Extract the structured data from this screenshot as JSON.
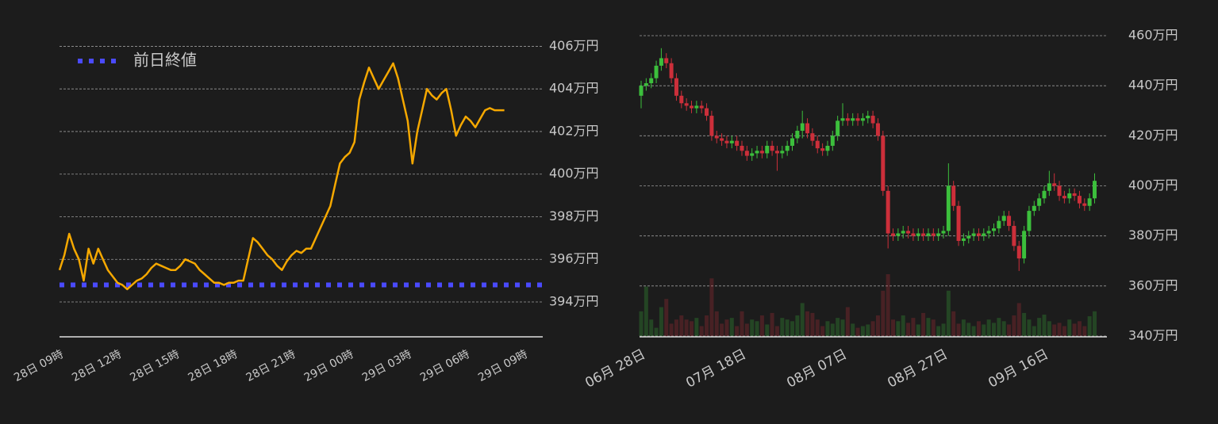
{
  "chart_data": [
    {
      "type": "line",
      "categories": [
        "28日 09時",
        null,
        null,
        null,
        null,
        null,
        null,
        null,
        null,
        null,
        null,
        null,
        "28日 12時",
        null,
        null,
        null,
        null,
        null,
        null,
        null,
        null,
        null,
        null,
        null,
        "28日 15時",
        null,
        null,
        null,
        null,
        null,
        null,
        null,
        null,
        null,
        null,
        null,
        "28日 18時",
        null,
        null,
        null,
        null,
        null,
        null,
        null,
        null,
        null,
        null,
        null,
        "28日 21時",
        null,
        null,
        null,
        null,
        null,
        null,
        null,
        null,
        null,
        null,
        null,
        "29日 00時",
        null,
        null,
        null,
        null,
        null,
        null,
        null,
        null,
        null,
        null,
        null,
        "29日 03時",
        null,
        null,
        null,
        null,
        null,
        null,
        null,
        null,
        null,
        null,
        null,
        "29日 06時",
        null,
        null,
        null,
        null,
        null,
        null,
        null,
        null,
        null,
        null,
        null,
        "29日 09時"
      ],
      "series": [
        {
          "color": "#f5a800",
          "values": [
            395.5,
            396.2,
            397.2,
            396.5,
            396.0,
            395.0,
            396.5,
            395.8,
            396.5,
            396.0,
            395.5,
            395.2,
            394.9,
            394.8,
            394.6,
            394.8,
            395.0,
            395.1,
            395.3,
            395.6,
            395.8,
            395.7,
            395.6,
            395.5,
            395.5,
            395.7,
            396.0,
            395.9,
            395.8,
            395.5,
            395.3,
            395.1,
            394.9,
            394.9,
            394.8,
            394.9,
            394.9,
            395.0,
            395.0,
            396.0,
            397.0,
            396.8,
            396.5,
            396.2,
            396.0,
            395.7,
            395.5,
            395.9,
            396.2,
            396.4,
            396.3,
            396.5,
            396.5,
            397.0,
            397.5,
            398.0,
            398.5,
            399.5,
            400.5,
            400.8,
            401.0,
            401.5,
            403.5,
            404.3,
            405.0,
            404.5,
            404.0,
            404.4,
            404.8,
            405.2,
            404.5,
            403.5,
            402.5,
            400.5,
            402.0,
            403.0,
            404.0,
            403.7,
            403.5,
            403.8,
            404.0,
            403.0,
            401.8,
            402.3,
            402.7,
            402.5,
            402.2,
            402.6,
            403.0,
            403.1,
            403.0,
            403.0,
            403.0,
            null,
            null,
            null,
            null
          ]
        }
      ],
      "reference_line": {
        "name": "前日終値",
        "value": 394.8,
        "color": "#4a4aff"
      },
      "ylim": [
        392.4,
        406.5
      ],
      "yticks": [
        {
          "value": 394,
          "label": "394万円"
        },
        {
          "value": 396,
          "label": "396万円"
        },
        {
          "value": 398,
          "label": "398万円"
        },
        {
          "value": 400,
          "label": "400万円"
        },
        {
          "value": 402,
          "label": "402万円"
        },
        {
          "value": 404,
          "label": "404万円"
        },
        {
          "value": 406,
          "label": "406万円"
        }
      ],
      "grid": true,
      "legend": "upper left"
    },
    {
      "type": "candlestick",
      "categories": [
        "06月 28日",
        null,
        null,
        null,
        null,
        null,
        null,
        null,
        null,
        null,
        null,
        null,
        null,
        null,
        null,
        null,
        null,
        null,
        null,
        null,
        "07月 18日",
        null,
        null,
        null,
        null,
        null,
        null,
        null,
        null,
        null,
        null,
        null,
        null,
        null,
        null,
        null,
        null,
        null,
        null,
        null,
        "08月 07日",
        null,
        null,
        null,
        null,
        null,
        null,
        null,
        null,
        null,
        null,
        null,
        null,
        null,
        null,
        null,
        null,
        null,
        null,
        null,
        "08月 27日",
        null,
        null,
        null,
        null,
        null,
        null,
        null,
        null,
        null,
        null,
        null,
        null,
        null,
        null,
        null,
        null,
        null,
        null,
        null,
        "09月 16日",
        null,
        null,
        null,
        null,
        null,
        null,
        null,
        null,
        null,
        null
      ],
      "open": [
        436,
        440,
        441,
        443,
        448,
        451,
        449,
        443,
        436,
        433,
        432,
        431,
        432,
        431,
        428,
        420,
        419,
        418,
        417,
        418,
        416,
        414,
        412,
        413,
        414,
        413,
        416,
        414,
        413,
        414,
        416,
        419,
        422,
        425,
        421,
        418,
        415,
        414,
        416,
        420,
        426,
        427,
        426,
        427,
        426,
        427,
        428,
        425,
        420,
        398,
        381,
        380,
        381,
        382,
        381,
        380,
        381,
        380,
        381,
        380,
        381,
        382,
        400,
        392,
        378,
        379,
        380,
        381,
        380,
        381,
        382,
        383,
        386,
        388,
        384,
        376,
        371,
        382,
        390,
        392,
        395,
        398,
        401,
        400,
        396,
        395,
        397,
        396,
        393,
        392,
        395
      ],
      "high": [
        442,
        443,
        445,
        450,
        455,
        453,
        451,
        445,
        438,
        435,
        434,
        434,
        434,
        433,
        430,
        422,
        421,
        420,
        420,
        420,
        418,
        416,
        415,
        416,
        416,
        418,
        418,
        416,
        416,
        418,
        421,
        424,
        430,
        427,
        423,
        420,
        417,
        418,
        422,
        428,
        433,
        429,
        429,
        429,
        429,
        430,
        430,
        427,
        422,
        400,
        383,
        383,
        384,
        384,
        383,
        383,
        383,
        383,
        383,
        383,
        384,
        409,
        402,
        394,
        381,
        382,
        383,
        383,
        383,
        384,
        385,
        388,
        390,
        390,
        386,
        378,
        384,
        392,
        394,
        397,
        400,
        406,
        405,
        402,
        398,
        399,
        399,
        398,
        395,
        397,
        405
      ],
      "low": [
        431,
        438,
        439,
        441,
        446,
        447,
        441,
        434,
        431,
        430,
        429,
        429,
        429,
        426,
        418,
        417,
        416,
        415,
        415,
        414,
        412,
        410,
        410,
        411,
        411,
        411,
        412,
        406,
        411,
        412,
        414,
        417,
        419,
        419,
        416,
        413,
        412,
        412,
        414,
        418,
        424,
        424,
        424,
        424,
        424,
        425,
        423,
        418,
        396,
        375,
        378,
        378,
        379,
        379,
        378,
        378,
        378,
        378,
        378,
        378,
        379,
        380,
        390,
        376,
        376,
        377,
        378,
        378,
        378,
        379,
        380,
        381,
        384,
        382,
        374,
        366,
        369,
        380,
        388,
        390,
        393,
        396,
        398,
        394,
        393,
        393,
        394,
        391,
        390,
        390,
        393
      ],
      "close": [
        440,
        441,
        443,
        448,
        451,
        449,
        443,
        436,
        433,
        432,
        431,
        432,
        431,
        428,
        420,
        419,
        418,
        417,
        418,
        416,
        414,
        412,
        413,
        414,
        413,
        416,
        414,
        413,
        414,
        416,
        419,
        422,
        425,
        421,
        418,
        415,
        414,
        416,
        420,
        426,
        427,
        426,
        427,
        426,
        427,
        428,
        425,
        420,
        398,
        381,
        380,
        381,
        382,
        381,
        380,
        381,
        380,
        381,
        380,
        381,
        382,
        400,
        392,
        378,
        379,
        380,
        381,
        380,
        381,
        382,
        383,
        386,
        388,
        384,
        376,
        371,
        382,
        390,
        392,
        395,
        398,
        401,
        400,
        396,
        395,
        397,
        396,
        393,
        392,
        395,
        402
      ],
      "volume": [
        30,
        60,
        20,
        10,
        35,
        45,
        15,
        20,
        25,
        20,
        18,
        22,
        12,
        25,
        70,
        30,
        15,
        20,
        22,
        12,
        30,
        15,
        20,
        18,
        25,
        14,
        28,
        12,
        22,
        20,
        18,
        25,
        40,
        30,
        28,
        20,
        12,
        18,
        15,
        22,
        20,
        35,
        15,
        10,
        12,
        14,
        18,
        25,
        55,
        75,
        20,
        18,
        25,
        16,
        22,
        14,
        28,
        22,
        20,
        12,
        15,
        55,
        30,
        15,
        20,
        16,
        12,
        18,
        14,
        20,
        16,
        22,
        18,
        14,
        25,
        40,
        28,
        20,
        12,
        22,
        26,
        18,
        14,
        16,
        12,
        20,
        15,
        18,
        12,
        24,
        30
      ],
      "up_color": "#3cbf3c",
      "down_color": "#cc2f3a",
      "ylim": [
        340,
        460
      ],
      "yticks": [
        {
          "value": 340,
          "label": "340万円"
        },
        {
          "value": 360,
          "label": "360万円"
        },
        {
          "value": 380,
          "label": "380万円"
        },
        {
          "value": 400,
          "label": "400万円"
        },
        {
          "value": 420,
          "label": "420万円"
        },
        {
          "value": 440,
          "label": "440万円"
        },
        {
          "value": 460,
          "label": "460万円"
        }
      ],
      "grid": true
    }
  ]
}
